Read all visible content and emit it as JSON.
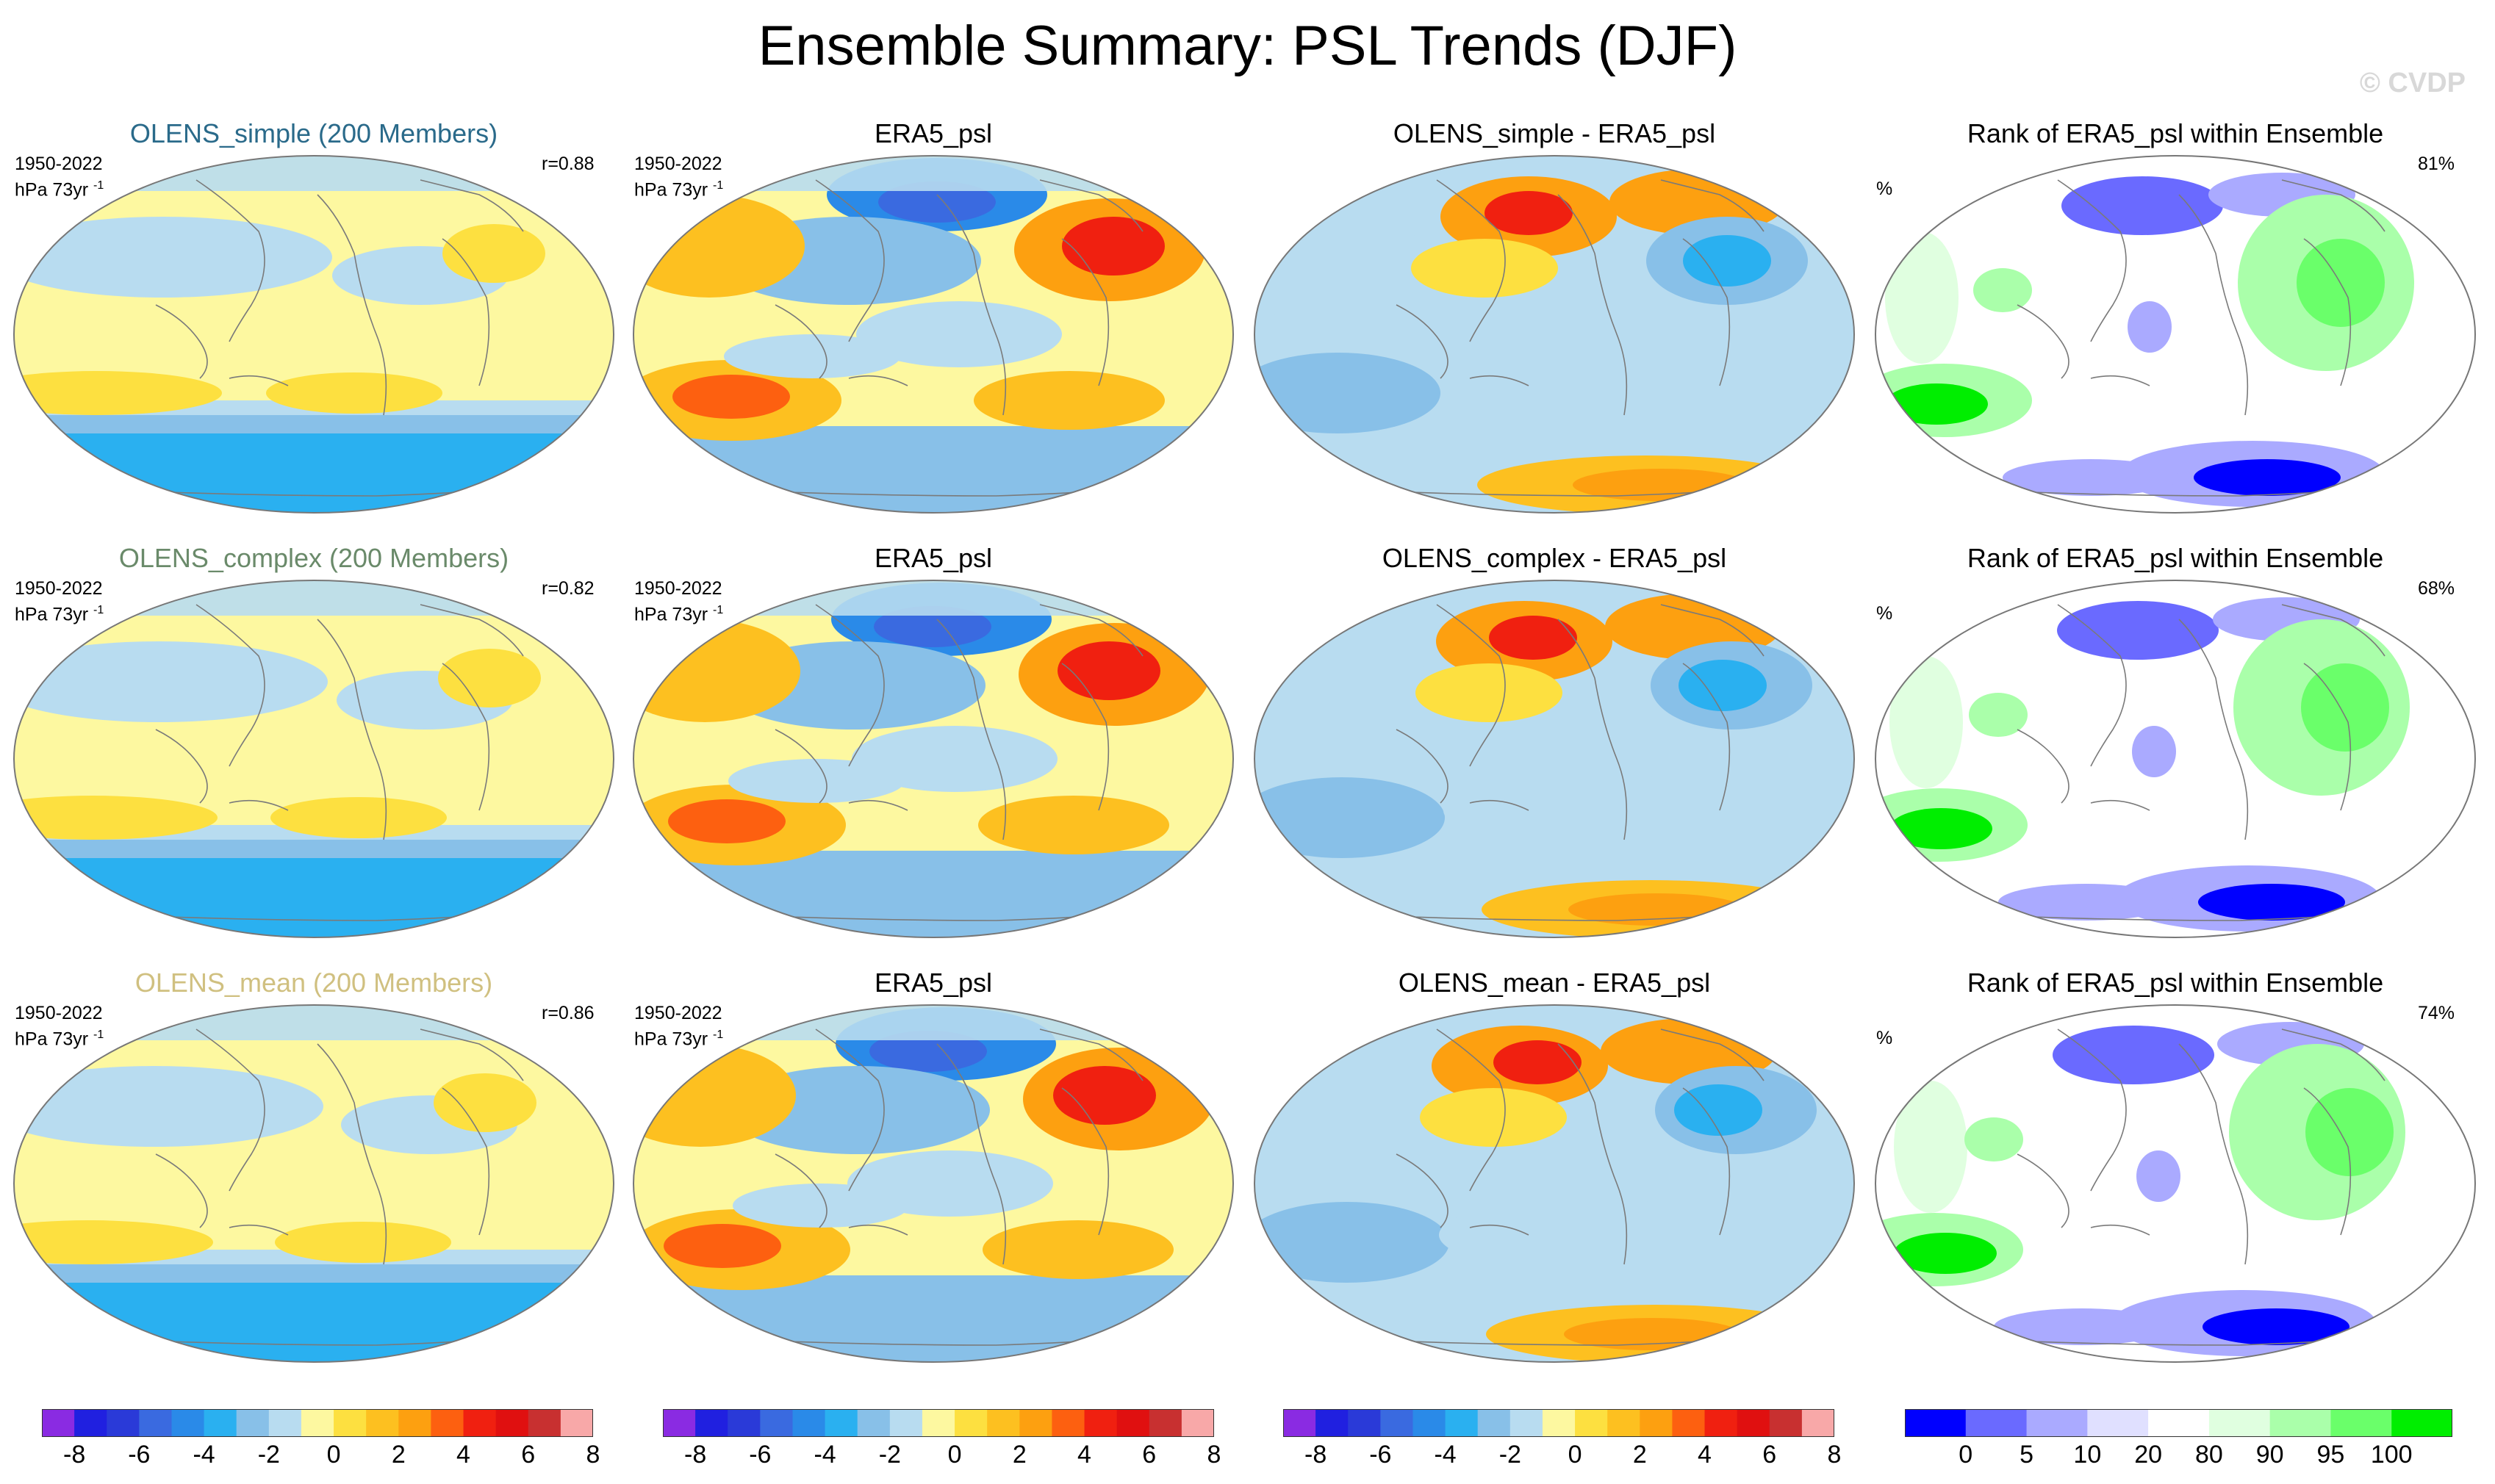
{
  "title": "Ensemble Summary: PSL Trends (DJF)",
  "watermark": "© CVDP",
  "rows": [
    {
      "ensemble_title": "OLENS_simple (200 Members)",
      "ensemble_color": "#2a6a8a",
      "period": "1950-2022",
      "units": "hPa 73yr",
      "units_sup": "-1",
      "r_value": "r=0.88",
      "obs_title": "ERA5_psl",
      "diff_title": "OLENS_simple - ERA5_psl",
      "rank_title": "Rank of ERA5_psl within Ensemble",
      "rank_unit": "%",
      "rank_pct": "81%"
    },
    {
      "ensemble_title": "OLENS_complex (200 Members)",
      "ensemble_color": "#6a8a6a",
      "period": "1950-2022",
      "units": "hPa 73yr",
      "units_sup": "-1",
      "r_value": "r=0.82",
      "obs_title": "ERA5_psl",
      "diff_title": "OLENS_complex - ERA5_psl",
      "rank_title": "Rank of ERA5_psl within Ensemble",
      "rank_unit": "%",
      "rank_pct": "68%"
    },
    {
      "ensemble_title": "OLENS_mean (200 Members)",
      "ensemble_color": "#d0c080",
      "period": "1950-2022",
      "units": "hPa 73yr",
      "units_sup": "-1",
      "r_value": "r=0.86",
      "obs_title": "ERA5_psl",
      "diff_title": "OLENS_mean - ERA5_psl",
      "rank_title": "Rank of ERA5_psl within Ensemble",
      "rank_unit": "%",
      "rank_pct": "74%"
    }
  ],
  "psl_colorbar": {
    "colors": [
      "#8a2be2",
      "#2020e0",
      "#2a3ad8",
      "#3a6ae0",
      "#2a8ae8",
      "#2ab0f0",
      "#88c0e8",
      "#b8dcf0",
      "#fdf8a0",
      "#fde040",
      "#fdc020",
      "#fda010",
      "#fd6010",
      "#f02010",
      "#e01010",
      "#c83030",
      "#f8a8a8"
    ],
    "labels": [
      "-8",
      "-6",
      "-4",
      "-2",
      "0",
      "2",
      "4",
      "6",
      "8"
    ]
  },
  "rank_colorbar": {
    "colors": [
      "#0000ff",
      "#6a6aff",
      "#aaaaff",
      "#e0e0ff",
      "#ffffff",
      "#e0ffe0",
      "#aaffaa",
      "#6aff6a",
      "#00ee00"
    ],
    "labels": [
      "0",
      "5",
      "10",
      "20",
      "80",
      "90",
      "95",
      "100"
    ]
  }
}
